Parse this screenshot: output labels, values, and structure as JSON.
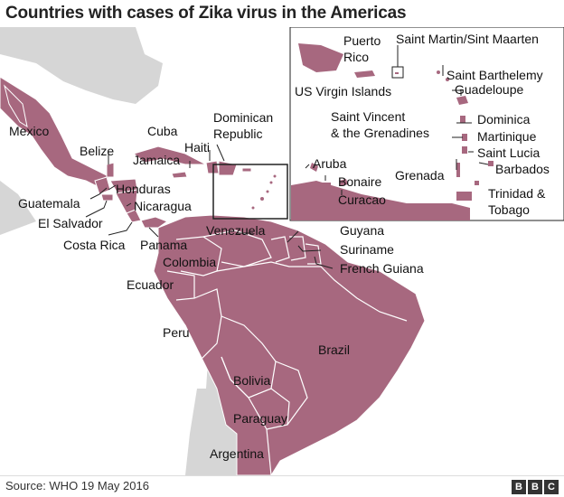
{
  "title": "Countries with cases of Zika virus in the Americas",
  "source": "Source: WHO 19 May 2016",
  "brand": [
    "B",
    "B",
    "C"
  ],
  "colors": {
    "affected": "#a7687f",
    "land": "#d6d6d6",
    "sea": "#ffffff",
    "border": "#ffffff",
    "label": "#111111"
  },
  "mainland_labels": [
    "Mexico",
    "Belize",
    "Cuba",
    "Jamaica",
    "Haiti",
    "Dominican",
    "Republic",
    "Guatemala",
    "Honduras",
    "El Salvador",
    "Nicaragua",
    "Costa Rica",
    "Panama",
    "Venezuela",
    "Colombia",
    "Guyana",
    "Suriname",
    "French Guiana",
    "Ecuador",
    "Peru",
    "Brazil",
    "Bolivia",
    "Paraguay",
    "Argentina"
  ],
  "inset_labels": [
    "Puerto",
    "Rico",
    "Saint Martin/Sint Maarten",
    "US Virgin Islands",
    "Saint Barthelemy",
    "Guadeloupe",
    "Dominica",
    "Saint Vincent",
    "& the Grenadines",
    "Martinique",
    "Saint Lucia",
    "Barbados",
    "Grenada",
    "Aruba",
    "Bonaire",
    "Curacao",
    "Trinidad &",
    "Tobago"
  ]
}
